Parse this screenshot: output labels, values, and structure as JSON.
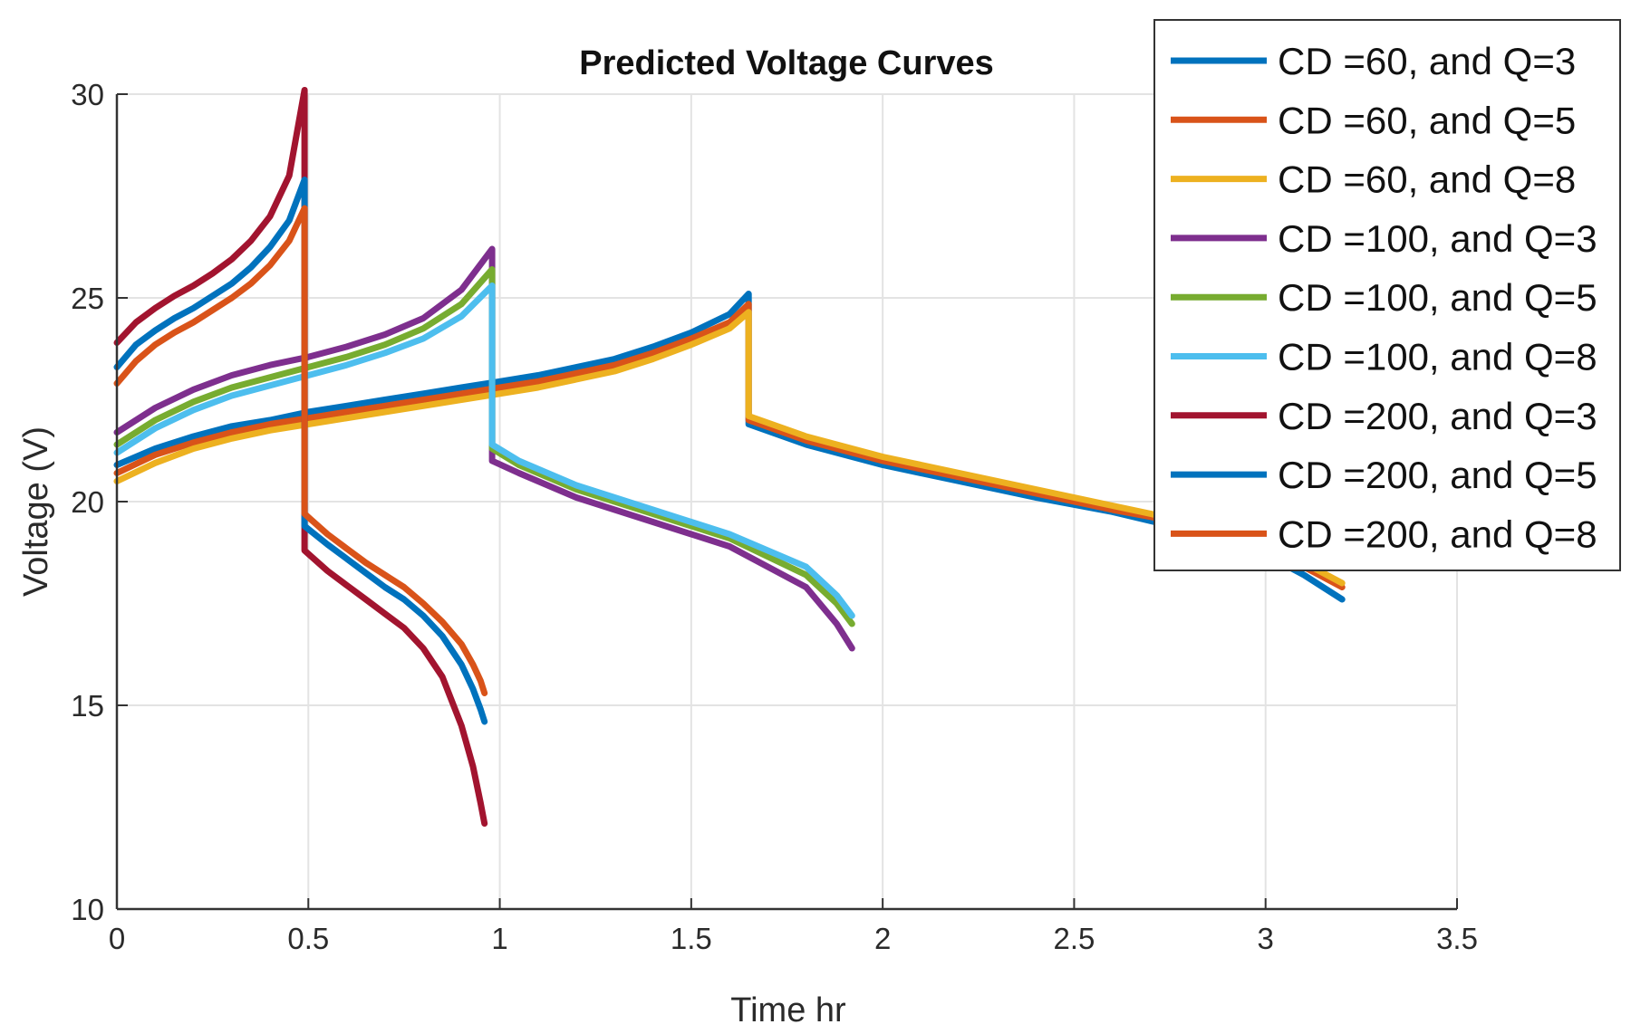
{
  "chart_data": {
    "type": "line",
    "title": "Predicted Voltage Curves",
    "xlabel": "Time hr",
    "ylabel": "Voltage (V)",
    "xlim": [
      0,
      3.5
    ],
    "ylim": [
      10,
      30
    ],
    "xticks": [
      "0",
      "0.5",
      "1",
      "1.5",
      "2",
      "2.5",
      "3",
      "3.5"
    ],
    "yticks": [
      "10",
      "15",
      "20",
      "25",
      "30"
    ],
    "grid": true,
    "legend_position": "top-right",
    "series": [
      {
        "name": "CD =60, and Q=3",
        "color": "#0072BD",
        "x": [
          0,
          0.1,
          0.2,
          0.3,
          0.4,
          0.5,
          0.6,
          0.7,
          0.8,
          0.9,
          1.0,
          1.1,
          1.2,
          1.3,
          1.4,
          1.5,
          1.6,
          1.65,
          1.65,
          1.8,
          2.0,
          2.2,
          2.4,
          2.6,
          2.8,
          3.0,
          3.1,
          3.2
        ],
        "y": [
          20.9,
          21.3,
          21.6,
          21.85,
          22.0,
          22.2,
          22.35,
          22.5,
          22.65,
          22.8,
          22.95,
          23.1,
          23.3,
          23.5,
          23.8,
          24.15,
          24.6,
          25.1,
          21.9,
          21.4,
          20.9,
          20.5,
          20.1,
          19.75,
          19.3,
          18.7,
          18.2,
          17.6
        ]
      },
      {
        "name": "CD =60, and Q=5",
        "color": "#D95319",
        "x": [
          0,
          0.1,
          0.2,
          0.3,
          0.4,
          0.5,
          0.6,
          0.7,
          0.8,
          0.9,
          1.0,
          1.1,
          1.2,
          1.3,
          1.4,
          1.5,
          1.6,
          1.65,
          1.65,
          1.8,
          2.0,
          2.2,
          2.4,
          2.6,
          2.8,
          3.0,
          3.1,
          3.2
        ],
        "y": [
          20.7,
          21.15,
          21.45,
          21.7,
          21.9,
          22.05,
          22.2,
          22.35,
          22.5,
          22.65,
          22.8,
          22.95,
          23.15,
          23.35,
          23.65,
          24.0,
          24.4,
          24.85,
          22.0,
          21.5,
          21.0,
          20.6,
          20.2,
          19.8,
          19.45,
          18.9,
          18.4,
          17.9
        ]
      },
      {
        "name": "CD =60, and Q=8",
        "color": "#EDB120",
        "x": [
          0,
          0.1,
          0.2,
          0.3,
          0.4,
          0.5,
          0.6,
          0.7,
          0.8,
          0.9,
          1.0,
          1.1,
          1.2,
          1.3,
          1.4,
          1.5,
          1.6,
          1.65,
          1.65,
          1.8,
          2.0,
          2.2,
          2.4,
          2.6,
          2.8,
          3.0,
          3.1,
          3.2
        ],
        "y": [
          20.5,
          20.95,
          21.3,
          21.55,
          21.75,
          21.9,
          22.05,
          22.2,
          22.35,
          22.5,
          22.65,
          22.8,
          23.0,
          23.2,
          23.5,
          23.85,
          24.25,
          24.65,
          22.1,
          21.6,
          21.1,
          20.7,
          20.3,
          19.9,
          19.5,
          19.0,
          18.5,
          18.0
        ]
      },
      {
        "name": "CD =100, and Q=3",
        "color": "#7E2F8E",
        "x": [
          0,
          0.1,
          0.2,
          0.3,
          0.4,
          0.5,
          0.6,
          0.7,
          0.8,
          0.9,
          0.98,
          0.98,
          1.05,
          1.2,
          1.4,
          1.6,
          1.8,
          1.88,
          1.92
        ],
        "y": [
          21.7,
          22.3,
          22.75,
          23.1,
          23.35,
          23.55,
          23.8,
          24.1,
          24.5,
          25.2,
          26.2,
          21.0,
          20.7,
          20.1,
          19.5,
          18.9,
          17.9,
          17.0,
          16.4
        ]
      },
      {
        "name": "CD =100, and Q=5",
        "color": "#77AC30",
        "x": [
          0,
          0.1,
          0.2,
          0.3,
          0.4,
          0.5,
          0.6,
          0.7,
          0.8,
          0.9,
          0.98,
          0.98,
          1.05,
          1.2,
          1.4,
          1.6,
          1.8,
          1.88,
          1.92
        ],
        "y": [
          21.4,
          22.0,
          22.45,
          22.8,
          23.05,
          23.3,
          23.55,
          23.85,
          24.25,
          24.85,
          25.7,
          21.3,
          20.9,
          20.3,
          19.7,
          19.1,
          18.2,
          17.5,
          17.0
        ]
      },
      {
        "name": "CD =100, and Q=8",
        "color": "#4DBEEE",
        "x": [
          0,
          0.1,
          0.2,
          0.3,
          0.4,
          0.5,
          0.6,
          0.7,
          0.8,
          0.9,
          0.98,
          0.98,
          1.05,
          1.2,
          1.4,
          1.6,
          1.8,
          1.88,
          1.92
        ],
        "y": [
          21.2,
          21.8,
          22.25,
          22.6,
          22.85,
          23.1,
          23.35,
          23.65,
          24.0,
          24.55,
          25.3,
          21.4,
          21.0,
          20.4,
          19.8,
          19.2,
          18.4,
          17.7,
          17.2
        ]
      },
      {
        "name": "CD =200, and Q=3",
        "color": "#A2142F",
        "x": [
          0,
          0.05,
          0.1,
          0.15,
          0.2,
          0.25,
          0.3,
          0.35,
          0.4,
          0.45,
          0.49,
          0.49,
          0.55,
          0.6,
          0.65,
          0.7,
          0.75,
          0.8,
          0.85,
          0.9,
          0.93,
          0.95,
          0.96
        ],
        "y": [
          23.9,
          24.4,
          24.75,
          25.05,
          25.3,
          25.6,
          25.95,
          26.4,
          27.0,
          28.0,
          30.1,
          18.8,
          18.3,
          17.95,
          17.6,
          17.25,
          16.9,
          16.4,
          15.7,
          14.5,
          13.5,
          12.6,
          12.1
        ]
      },
      {
        "name": "CD =200, and Q=5",
        "color": "#0072BD",
        "x": [
          0,
          0.05,
          0.1,
          0.15,
          0.2,
          0.25,
          0.3,
          0.35,
          0.4,
          0.45,
          0.49,
          0.49,
          0.55,
          0.6,
          0.65,
          0.7,
          0.75,
          0.8,
          0.85,
          0.9,
          0.93,
          0.95,
          0.96
        ],
        "y": [
          23.3,
          23.85,
          24.2,
          24.5,
          24.75,
          25.05,
          25.35,
          25.75,
          26.25,
          26.9,
          27.9,
          19.4,
          18.95,
          18.6,
          18.25,
          17.9,
          17.6,
          17.2,
          16.7,
          16.0,
          15.4,
          14.9,
          14.6
        ]
      },
      {
        "name": "CD =200, and Q=8",
        "color": "#D95319",
        "x": [
          0,
          0.05,
          0.1,
          0.15,
          0.2,
          0.25,
          0.3,
          0.35,
          0.4,
          0.45,
          0.49,
          0.49,
          0.55,
          0.6,
          0.65,
          0.7,
          0.75,
          0.8,
          0.85,
          0.9,
          0.93,
          0.95,
          0.96
        ],
        "y": [
          22.9,
          23.45,
          23.85,
          24.15,
          24.4,
          24.7,
          25.0,
          25.35,
          25.8,
          26.4,
          27.2,
          19.7,
          19.2,
          18.85,
          18.5,
          18.2,
          17.9,
          17.5,
          17.05,
          16.5,
          16.0,
          15.6,
          15.3
        ]
      }
    ]
  }
}
